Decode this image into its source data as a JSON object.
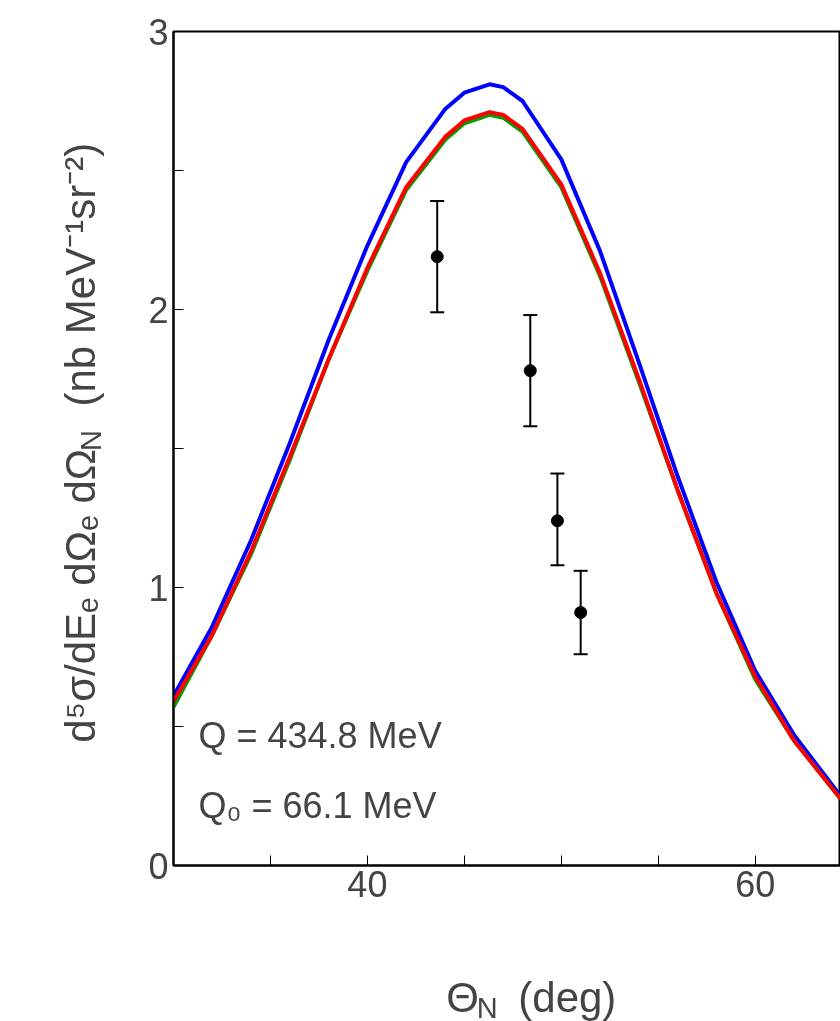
{
  "chart_data": {
    "type": "line",
    "xlabel": "Θ$_{N}$  (deg)",
    "ylabel": "d⁵σ/dEₑ dΩₑ dΩ$_{N}$  (nb MeV⁻¹sr⁻²)",
    "annotations": [
      "Q = 434.8 MeV",
      "Q₀ = 66.1 MeV"
    ],
    "x": [
      30,
      32,
      34,
      36,
      38,
      40,
      42,
      44,
      45,
      46.3,
      47,
      48,
      50,
      52,
      54,
      56,
      58,
      60,
      62,
      64.4
    ],
    "series": [
      {
        "color": "#0000ff",
        "values": [
          0.61,
          0.86,
          1.17,
          1.52,
          1.89,
          2.23,
          2.53,
          2.72,
          2.78,
          2.81,
          2.8,
          2.75,
          2.54,
          2.21,
          1.81,
          1.4,
          1.02,
          0.7,
          0.47,
          0.25
        ]
      },
      {
        "color": "#00a000",
        "values": [
          0.57,
          0.83,
          1.12,
          1.46,
          1.82,
          2.14,
          2.43,
          2.61,
          2.67,
          2.7,
          2.69,
          2.64,
          2.44,
          2.12,
          1.74,
          1.35,
          0.98,
          0.67,
          0.45,
          0.24
        ]
      },
      {
        "color": "#ff0000",
        "values": [
          0.59,
          0.83,
          1.13,
          1.47,
          1.82,
          2.15,
          2.44,
          2.62,
          2.68,
          2.71,
          2.7,
          2.65,
          2.45,
          2.13,
          1.75,
          1.35,
          0.98,
          0.68,
          0.45,
          0.24
        ]
      },
      {
        "type": "scatter",
        "color": "#000000",
        "marker": "circle",
        "x": [
          43.6,
          48.4,
          49.8,
          51.0
        ],
        "values": [
          2.19,
          1.78,
          1.24,
          0.91
        ],
        "errors": [
          0.2,
          0.2,
          [
            1.08,
            1.41
          ],
          0.15
        ]
      }
    ],
    "xlim": [
      30,
      64.4
    ],
    "ylim": [
      0,
      3
    ],
    "xticks": [
      {
        "value": 35,
        "label": null
      },
      40,
      {
        "value": 45,
        "label": null
      },
      {
        "value": 50,
        "label": null
      },
      {
        "value": 55,
        "label": null
      },
      60
    ],
    "yticks": [
      0,
      {
        "value": 0.5,
        "label": null
      },
      1,
      {
        "value": 1.5,
        "label": null
      },
      2,
      {
        "value": 2.5,
        "label": null
      },
      3
    ],
    "grid": false,
    "line_style": "solid"
  }
}
